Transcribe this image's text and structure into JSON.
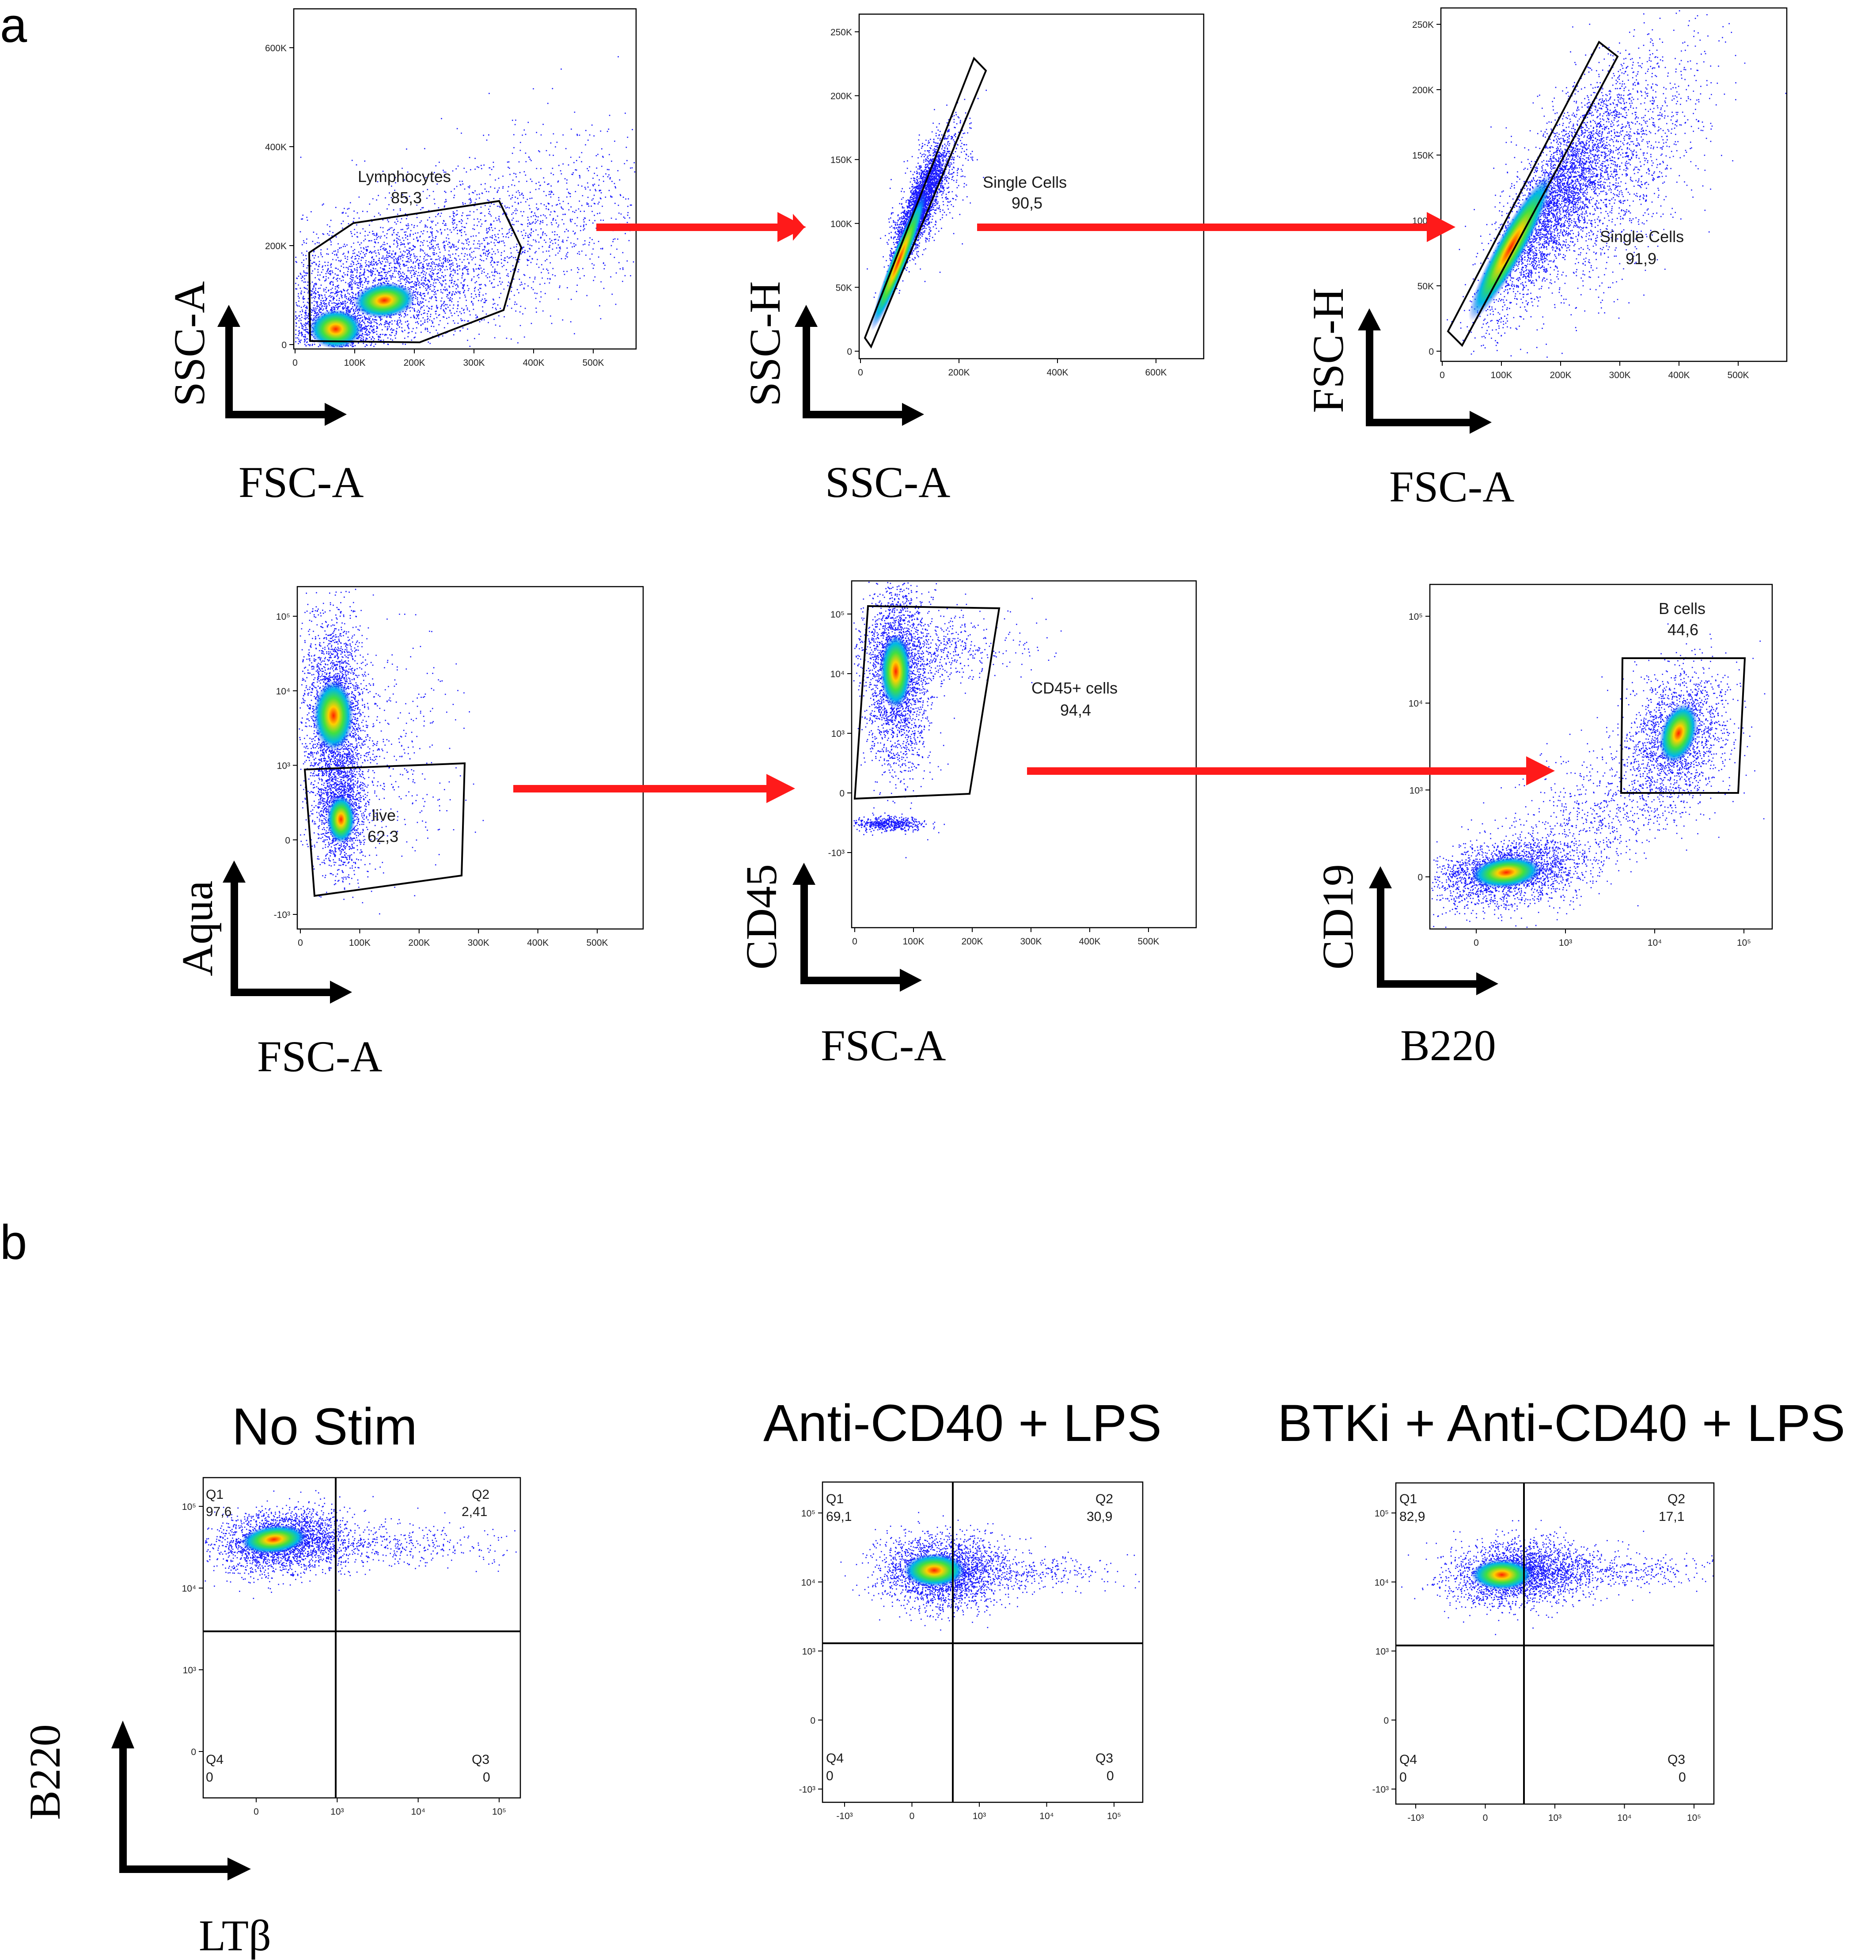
{
  "panels": {
    "a": "a",
    "b": "b"
  },
  "chart_data": [
    {
      "type": "scatter",
      "panel": "a",
      "id": "p1",
      "title": "",
      "xlabel": "FSC-A",
      "ylabel": "SSC-A",
      "x_ticks": [
        "0",
        "100K",
        "200K",
        "300K",
        "400K",
        "500K"
      ],
      "y_ticks": [
        "0",
        "200K",
        "400K",
        "600K"
      ],
      "gate": {
        "name": "Lymphocytes",
        "value": "85,3"
      }
    },
    {
      "type": "scatter",
      "panel": "a",
      "id": "p2",
      "title": "",
      "xlabel": "SSC-A",
      "ylabel": "SSC-H",
      "x_ticks": [
        "0",
        "200K",
        "400K",
        "600K"
      ],
      "y_ticks": [
        "0",
        "50K",
        "100K",
        "150K",
        "200K",
        "250K"
      ],
      "gate": {
        "name": "Single Cells",
        "value": "90,5"
      }
    },
    {
      "type": "scatter",
      "panel": "a",
      "id": "p3",
      "title": "",
      "xlabel": "FSC-A",
      "ylabel": "FSC-H",
      "x_ticks": [
        "0",
        "100K",
        "200K",
        "300K",
        "400K",
        "500K"
      ],
      "y_ticks": [
        "0",
        "50K",
        "100K",
        "150K",
        "200K",
        "250K"
      ],
      "gate": {
        "name": "Single Cells",
        "value": "91,9"
      }
    },
    {
      "type": "scatter",
      "panel": "a",
      "id": "p4",
      "title": "",
      "xlabel": "FSC-A",
      "ylabel": "Aqua",
      "x_ticks": [
        "0",
        "100K",
        "200K",
        "300K",
        "400K",
        "500K"
      ],
      "y_ticks": [
        "-10³",
        "0",
        "10³",
        "10⁴",
        "10⁵"
      ],
      "gate": {
        "name": "live",
        "value": "62,3"
      }
    },
    {
      "type": "scatter",
      "panel": "a",
      "id": "p5",
      "title": "",
      "xlabel": "FSC-A",
      "ylabel": "CD45",
      "x_ticks": [
        "0",
        "100K",
        "200K",
        "300K",
        "400K",
        "500K"
      ],
      "y_ticks": [
        "-10³",
        "0",
        "10³",
        "10⁴",
        "10⁵"
      ],
      "gate": {
        "name": "CD45+ cells",
        "value": "94,4"
      }
    },
    {
      "type": "scatter",
      "panel": "a",
      "id": "p6",
      "title": "",
      "xlabel": "B220",
      "ylabel": "CD19",
      "x_ticks": [
        "0",
        "10³",
        "10⁴",
        "10⁵"
      ],
      "y_ticks": [
        "0",
        "10³",
        "10⁴",
        "10⁵"
      ],
      "gate": {
        "name": "B cells",
        "value": "44,6"
      }
    },
    {
      "type": "scatter",
      "panel": "b",
      "id": "q1",
      "title": "No Stim",
      "xlabel": "LTβ",
      "ylabel": "B220",
      "x_ticks": [
        "0",
        "10³",
        "10⁴",
        "10⁵"
      ],
      "y_ticks": [
        "0",
        "10³",
        "10⁴",
        "10⁵"
      ],
      "quadrants": [
        {
          "name": "Q1",
          "value": "97,6"
        },
        {
          "name": "Q2",
          "value": "2,41"
        },
        {
          "name": "Q3",
          "value": "0"
        },
        {
          "name": "Q4",
          "value": "0"
        }
      ]
    },
    {
      "type": "scatter",
      "panel": "b",
      "id": "q2",
      "title": "Anti-CD40 + LPS",
      "xlabel": "LTβ",
      "ylabel": "B220",
      "x_ticks": [
        "-10³",
        "0",
        "10³",
        "10⁴",
        "10⁵"
      ],
      "y_ticks": [
        "-10³",
        "0",
        "10³",
        "10⁴",
        "10⁵"
      ],
      "quadrants": [
        {
          "name": "Q1",
          "value": "69,1"
        },
        {
          "name": "Q2",
          "value": "30,9"
        },
        {
          "name": "Q3",
          "value": "0"
        },
        {
          "name": "Q4",
          "value": "0"
        }
      ]
    },
    {
      "type": "scatter",
      "panel": "b",
      "id": "q3",
      "title": "BTKi + Anti-CD40 + LPS",
      "xlabel": "LTβ",
      "ylabel": "B220",
      "x_ticks": [
        "-10³",
        "0",
        "10³",
        "10⁴",
        "10⁵"
      ],
      "y_ticks": [
        "-10³",
        "0",
        "10³",
        "10⁴",
        "10⁵"
      ],
      "quadrants": [
        {
          "name": "Q1",
          "value": "82,9"
        },
        {
          "name": "Q2",
          "value": "17,1"
        },
        {
          "name": "Q3",
          "value": "0"
        },
        {
          "name": "Q4",
          "value": "0"
        }
      ]
    }
  ],
  "colors": {
    "arrow": "#ff1a1a",
    "axis": "#000000",
    "dots": "#1a1aff"
  }
}
